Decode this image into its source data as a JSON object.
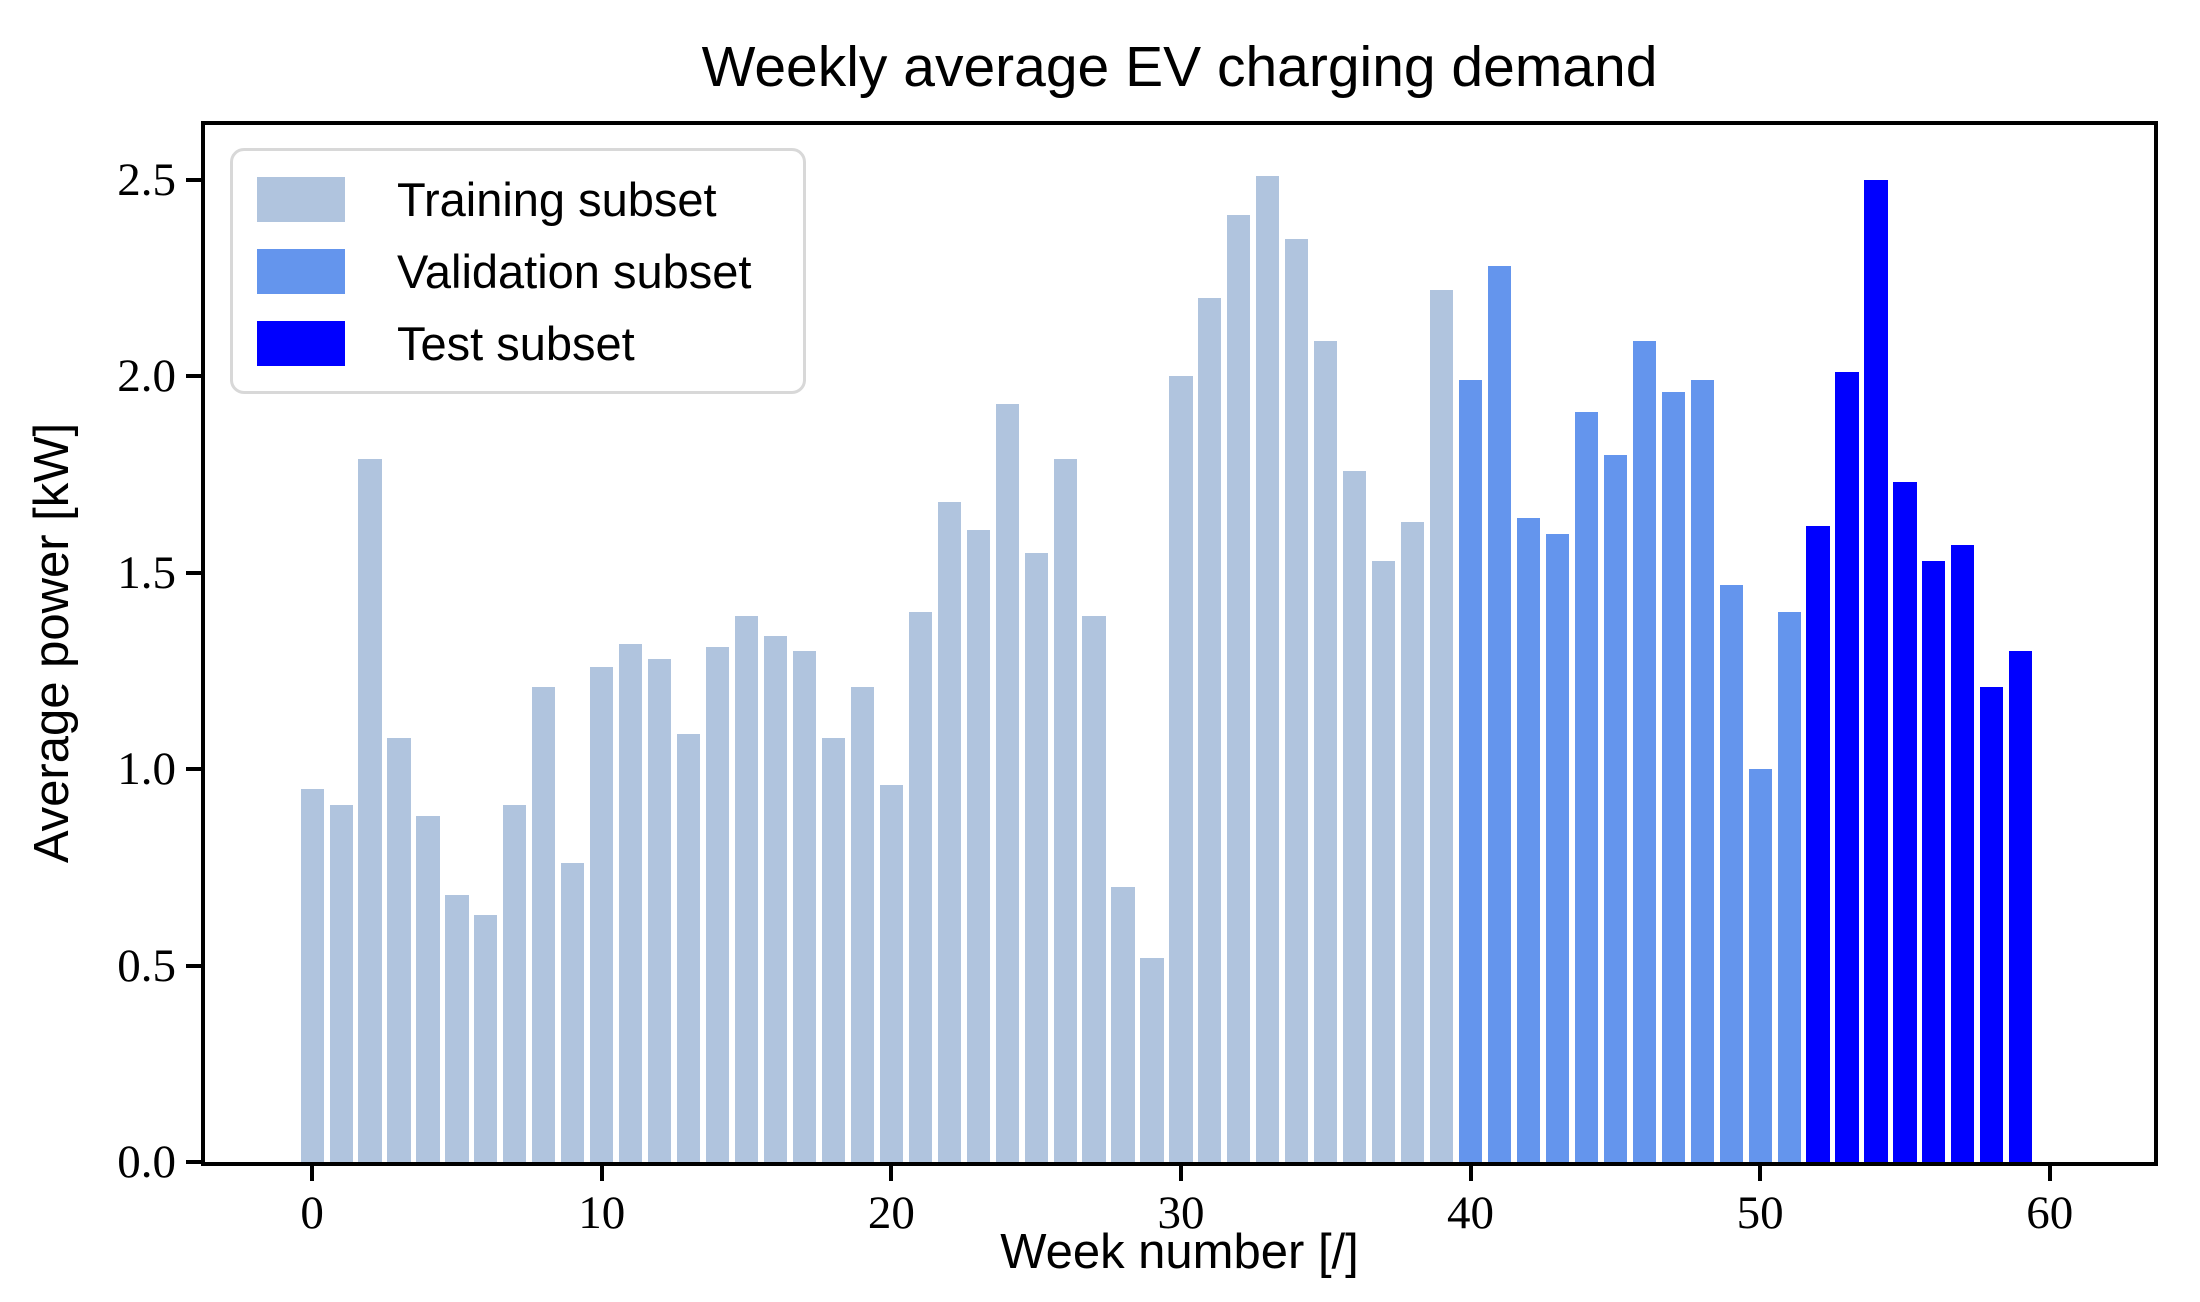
{
  "title": "Weekly average EV charging demand",
  "axes": {
    "xlabel": "Week number [/]",
    "ylabel": "Average power [kW]"
  },
  "legend": {
    "items": [
      {
        "label": "Training subset",
        "color": "#b0c4de"
      },
      {
        "label": "Validation subset",
        "color": "#6495ed"
      },
      {
        "label": "Test subset",
        "color": "#0000ff"
      }
    ]
  },
  "colors": {
    "training": "#b0c4de",
    "validation": "#6495ed",
    "test": "#0000ff",
    "axis": "#000000",
    "background": "#ffffff",
    "legend_border": "#d8d8d8"
  },
  "chart_data": {
    "type": "bar",
    "title": "Weekly average EV charging demand",
    "xlabel": "Week number [/]",
    "ylabel": "Average power [kW]",
    "xticks": [
      0,
      10,
      20,
      30,
      40,
      50,
      60
    ],
    "yticks": [
      0.0,
      0.5,
      1.0,
      1.5,
      2.0,
      2.5
    ],
    "xlim": [
      -3.7,
      63.6
    ],
    "ylim": [
      0,
      2.64
    ],
    "grid": false,
    "legend_position": "upper left",
    "bar_width": 0.8,
    "x_unit": "week",
    "series": [
      {
        "name": "Training subset",
        "color": "#b0c4de",
        "start_week": 0,
        "values": [
          0.95,
          0.91,
          1.79,
          1.08,
          0.88,
          0.68,
          0.63,
          0.91,
          1.21,
          0.76,
          1.26,
          1.32,
          1.28,
          1.09,
          1.31,
          1.39,
          1.34,
          1.3,
          1.08,
          1.21,
          0.96,
          1.4,
          1.68,
          1.61,
          1.93,
          1.55,
          1.79,
          1.39,
          0.7,
          0.52,
          2.0,
          2.2,
          2.41,
          2.51,
          2.35,
          2.09,
          1.76,
          1.53,
          1.63,
          2.22
        ]
      },
      {
        "name": "Validation subset",
        "color": "#6495ed",
        "start_week": 40,
        "values": [
          1.99,
          2.28,
          1.64,
          1.6,
          1.91,
          1.8,
          2.09,
          1.96,
          1.99,
          1.47,
          1.0,
          1.4
        ]
      },
      {
        "name": "Test subset",
        "color": "#0000ff",
        "start_week": 52,
        "values": [
          1.62,
          2.01,
          2.5,
          1.73,
          1.53,
          1.57,
          1.21,
          1.3
        ]
      }
    ]
  }
}
